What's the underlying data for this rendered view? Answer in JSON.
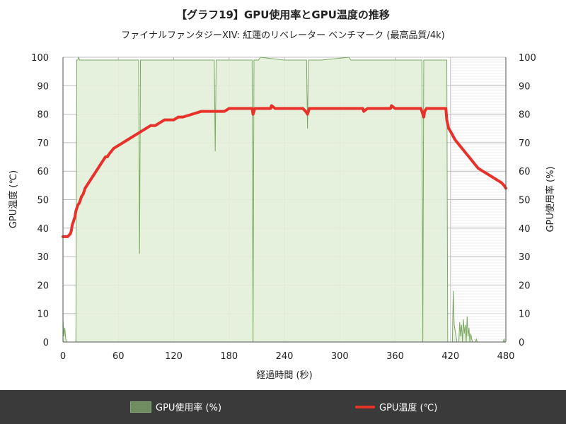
{
  "chart_data": {
    "type": "line",
    "title": "【グラフ19】GPU使用率とGPU温度の推移",
    "subtitle": "ファイナルファンタジーXIV: 紅蓮のリベレーター ベンチマーク (最高品質/4k)",
    "xlabel": "経過時間 (秒)",
    "ylabel_left": "GPU温度 (℃)",
    "ylabel_right": "GPU使用率 (%)",
    "xlim": [
      0,
      480
    ],
    "ylim": [
      0,
      100
    ],
    "x_ticks": [
      0,
      60,
      120,
      180,
      240,
      300,
      360,
      420,
      480
    ],
    "y_ticks": [
      0,
      10,
      20,
      30,
      40,
      50,
      60,
      70,
      80,
      90,
      100
    ],
    "grid": true,
    "legend_position": "bottom",
    "series": [
      {
        "name": "GPU使用率 (%)",
        "type": "area",
        "axis": "right",
        "color": "#7aa862",
        "fill": "#e3f0d9",
        "x": [
          0,
          1,
          2,
          3,
          4,
          5,
          6,
          7,
          8,
          9,
          10,
          11,
          12,
          13,
          14,
          15,
          16,
          17,
          18,
          19,
          20,
          40,
          60,
          80,
          81,
          82,
          83,
          84,
          85,
          100,
          130,
          160,
          164,
          165,
          166,
          167,
          168,
          180,
          200,
          204,
          205,
          206,
          207,
          208,
          210,
          212,
          214,
          240,
          260,
          263,
          264,
          265,
          266,
          267,
          268,
          280,
          310,
          312,
          314,
          340,
          380,
          389,
          390,
          391,
          392,
          393,
          394,
          400,
          415,
          416,
          417,
          418,
          419,
          420,
          421,
          422,
          423,
          424,
          425,
          426,
          427,
          428,
          429,
          430,
          431,
          432,
          433,
          434,
          435,
          436,
          437,
          438,
          439,
          440,
          441,
          442,
          443,
          444,
          445,
          446,
          447,
          448,
          449,
          450,
          451,
          452,
          453,
          454,
          455,
          456,
          457,
          458,
          459,
          460,
          461,
          462,
          463,
          464,
          465,
          466,
          467,
          468,
          469,
          470,
          471,
          472,
          473,
          474,
          475,
          476,
          477,
          478,
          479,
          480
        ],
        "values": [
          8,
          2,
          5,
          1,
          0,
          0,
          0,
          0,
          0,
          0,
          0,
          0,
          0,
          0,
          0,
          99,
          99,
          100,
          99,
          99,
          99,
          99,
          99,
          99,
          99,
          99,
          31,
          99,
          99,
          99,
          99,
          99,
          99,
          67,
          99,
          99,
          99,
          99,
          99,
          99,
          99,
          0,
          99,
          99,
          99,
          99,
          100,
          99,
          99,
          99,
          99,
          75,
          99,
          99,
          99,
          99,
          100,
          99,
          99,
          99,
          99,
          99,
          0,
          99,
          99,
          99,
          99,
          99,
          99,
          99,
          0,
          0,
          0,
          0,
          0,
          0,
          18,
          6,
          4,
          2,
          0,
          0,
          0,
          7,
          2,
          6,
          0,
          8,
          3,
          6,
          0,
          9,
          2,
          5,
          0,
          3,
          1,
          0,
          0,
          0,
          0,
          1,
          0,
          0,
          0,
          0,
          0,
          0,
          0,
          0,
          0,
          0,
          0,
          0,
          0,
          0,
          0,
          0,
          0,
          0,
          0,
          0,
          0,
          0,
          0,
          0,
          0,
          0,
          0,
          0,
          0,
          1,
          0,
          0
        ]
      },
      {
        "name": "GPU温度 (℃)",
        "type": "line",
        "axis": "left",
        "color": "#e8312a",
        "x": [
          0,
          5,
          8,
          9,
          10,
          11,
          12,
          13,
          14,
          16,
          18,
          20,
          22,
          24,
          26,
          28,
          30,
          32,
          34,
          36,
          38,
          40,
          42,
          44,
          46,
          48,
          50,
          55,
          60,
          65,
          70,
          75,
          80,
          85,
          90,
          95,
          100,
          105,
          110,
          115,
          120,
          125,
          130,
          140,
          150,
          160,
          170,
          175,
          180,
          190,
          200,
          205,
          206,
          207,
          208,
          210,
          220,
          225,
          226,
          230,
          240,
          250,
          260,
          263,
          265,
          267,
          270,
          280,
          300,
          320,
          325,
          326,
          330,
          340,
          350,
          355,
          356,
          360,
          380,
          388,
          390,
          391,
          392,
          394,
          400,
          415,
          416,
          418,
          420,
          425,
          430,
          435,
          440,
          445,
          450,
          455,
          460,
          465,
          470,
          475,
          478,
          480
        ],
        "values": [
          37,
          37,
          38,
          39,
          41,
          42,
          43,
          44,
          46,
          48,
          49,
          51,
          52,
          54,
          55,
          56,
          57,
          58,
          59,
          60,
          61,
          62,
          63,
          64,
          65,
          65,
          66,
          68,
          69,
          70,
          71,
          72,
          73,
          74,
          75,
          76,
          76,
          77,
          78,
          78,
          78,
          79,
          79,
          80,
          81,
          81,
          81,
          81,
          82,
          82,
          82,
          82,
          80,
          81,
          82,
          82,
          82,
          82,
          83,
          82,
          82,
          82,
          82,
          81,
          80,
          82,
          82,
          82,
          82,
          82,
          82,
          81,
          82,
          82,
          82,
          82,
          83,
          82,
          82,
          82,
          80,
          79,
          81,
          82,
          82,
          82,
          78,
          75,
          74,
          71,
          69,
          67,
          65,
          63,
          61,
          60,
          59,
          58,
          57,
          56,
          55,
          54
        ]
      }
    ]
  }
}
